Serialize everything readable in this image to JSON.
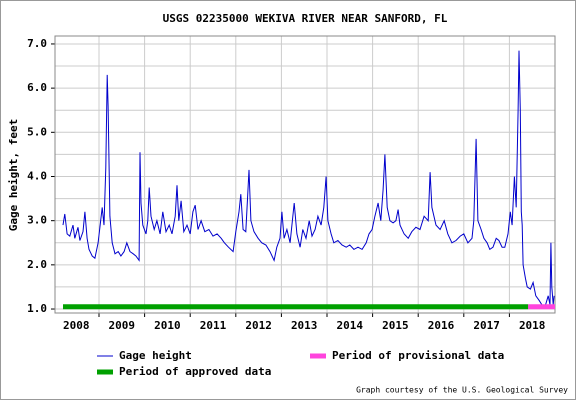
{
  "chart_data": {
    "type": "line",
    "title": "USGS 02235000 WEKIVA RIVER NEAR SANFORD, FL",
    "y_label": "Gage height, feet",
    "credit": "Graph courtesy of the U.S. Geological Survey",
    "xlim": [
      2008.035,
      2019.0
    ],
    "ylim": [
      0.91,
      7.18
    ],
    "xticks": [
      {
        "value": 2008.5,
        "label": "2008"
      },
      {
        "value": 2009.5,
        "label": "2009"
      },
      {
        "value": 2010.5,
        "label": "2010"
      },
      {
        "value": 2011.5,
        "label": "2011"
      },
      {
        "value": 2012.5,
        "label": "2012"
      },
      {
        "value": 2013.5,
        "label": "2013"
      },
      {
        "value": 2014.5,
        "label": "2014"
      },
      {
        "value": 2015.5,
        "label": "2015"
      },
      {
        "value": 2016.5,
        "label": "2016"
      },
      {
        "value": 2017.5,
        "label": "2017"
      },
      {
        "value": 2018.5,
        "label": "2018"
      }
    ],
    "xgrid": [
      2009,
      2010,
      2011,
      2012,
      2013,
      2014,
      2015,
      2016,
      2017,
      2018
    ],
    "yticks": [
      {
        "value": 1,
        "label": "1.0"
      },
      {
        "value": 2,
        "label": "2.0"
      },
      {
        "value": 3,
        "label": "3.0"
      },
      {
        "value": 4,
        "label": "4.0"
      },
      {
        "value": 5,
        "label": "5.0"
      },
      {
        "value": 6,
        "label": "6.0"
      },
      {
        "value": 7,
        "label": "7.0"
      }
    ],
    "yminor": [
      1.5,
      2.5,
      3.5,
      4.5,
      5.5,
      6.5
    ],
    "grid": true,
    "series": [
      {
        "name": "Gage height",
        "color": "#0000cc",
        "x": [
          2008.21,
          2008.25,
          2008.3,
          2008.36,
          2008.43,
          2008.47,
          2008.54,
          2008.58,
          2008.65,
          2008.69,
          2008.74,
          2008.78,
          2008.85,
          2008.91,
          2008.98,
          2009.02,
          2009.07,
          2009.11,
          2009.15,
          2009.18,
          2009.2,
          2009.24,
          2009.29,
          2009.35,
          2009.42,
          2009.48,
          2009.55,
          2009.61,
          2009.68,
          2009.75,
          2009.81,
          2009.88,
          2009.9,
          2009.92,
          2009.96,
          2010.03,
          2010.07,
          2010.1,
          2010.14,
          2010.21,
          2010.27,
          2010.34,
          2010.4,
          2010.47,
          2010.54,
          2010.6,
          2010.67,
          2010.71,
          2010.75,
          2010.8,
          2010.86,
          2010.93,
          2011.0,
          2011.06,
          2011.11,
          2011.17,
          2011.24,
          2011.32,
          2011.41,
          2011.5,
          2011.59,
          2011.68,
          2011.75,
          2011.84,
          2011.94,
          2012.0,
          2012.07,
          2012.11,
          2012.16,
          2012.22,
          2012.29,
          2012.33,
          2012.4,
          2012.49,
          2012.57,
          2012.66,
          2012.75,
          2012.84,
          2012.9,
          2012.97,
          2013.01,
          2013.06,
          2013.12,
          2013.19,
          2013.28,
          2013.34,
          2013.41,
          2013.47,
          2013.54,
          2013.61,
          2013.67,
          2013.74,
          2013.8,
          2013.87,
          2013.93,
          2013.98,
          2014.02,
          2014.09,
          2014.15,
          2014.24,
          2014.33,
          2014.42,
          2014.5,
          2014.59,
          2014.68,
          2014.77,
          2014.86,
          2014.92,
          2014.99,
          2015.05,
          2015.12,
          2015.18,
          2015.23,
          2015.27,
          2015.32,
          2015.38,
          2015.45,
          2015.51,
          2015.56,
          2015.6,
          2015.69,
          2015.78,
          2015.86,
          2015.95,
          2016.04,
          2016.13,
          2016.22,
          2016.26,
          2016.3,
          2016.39,
          2016.48,
          2016.57,
          2016.65,
          2016.74,
          2016.83,
          2016.92,
          2017.0,
          2017.09,
          2017.18,
          2017.22,
          2017.27,
          2017.31,
          2017.38,
          2017.44,
          2017.51,
          2017.57,
          2017.64,
          2017.71,
          2017.77,
          2017.84,
          2017.9,
          2017.97,
          2018.02,
          2018.06,
          2018.11,
          2018.15,
          2018.19,
          2018.21,
          2018.24,
          2018.26,
          2018.28,
          2018.3,
          2018.35,
          2018.39,
          2018.46,
          2018.52,
          2018.58,
          2018.65,
          2018.71,
          2018.78,
          2018.85,
          2018.89,
          2018.91,
          2018.93,
          2018.96,
          2018.98
        ],
        "values": [
          2.9,
          3.15,
          2.7,
          2.65,
          2.9,
          2.6,
          2.85,
          2.55,
          2.75,
          3.2,
          2.6,
          2.35,
          2.2,
          2.15,
          2.5,
          2.85,
          3.3,
          2.9,
          4.2,
          6.3,
          5.6,
          3.1,
          2.5,
          2.25,
          2.3,
          2.2,
          2.3,
          2.5,
          2.3,
          2.25,
          2.2,
          2.1,
          4.55,
          3.4,
          2.9,
          2.7,
          3.0,
          3.75,
          3.1,
          2.8,
          3.0,
          2.7,
          3.2,
          2.75,
          2.9,
          2.7,
          3.1,
          3.8,
          3.0,
          3.45,
          2.75,
          2.9,
          2.7,
          3.2,
          3.35,
          2.8,
          3.0,
          2.75,
          2.8,
          2.65,
          2.7,
          2.6,
          2.5,
          2.4,
          2.3,
          2.75,
          3.2,
          3.6,
          2.8,
          2.75,
          4.15,
          3.0,
          2.75,
          2.6,
          2.5,
          2.45,
          2.3,
          2.1,
          2.4,
          2.6,
          3.2,
          2.6,
          2.8,
          2.5,
          3.4,
          2.7,
          2.4,
          2.8,
          2.6,
          3.0,
          2.65,
          2.8,
          3.1,
          2.9,
          3.3,
          4.0,
          3.0,
          2.7,
          2.5,
          2.55,
          2.45,
          2.4,
          2.45,
          2.35,
          2.4,
          2.35,
          2.5,
          2.7,
          2.8,
          3.1,
          3.4,
          3.0,
          3.7,
          4.5,
          3.3,
          3.0,
          2.95,
          3.0,
          3.25,
          2.9,
          2.7,
          2.6,
          2.75,
          2.85,
          2.8,
          3.1,
          3.0,
          4.1,
          3.3,
          2.9,
          2.8,
          3.0,
          2.7,
          2.5,
          2.55,
          2.65,
          2.7,
          2.5,
          2.6,
          3.0,
          4.85,
          3.0,
          2.8,
          2.6,
          2.5,
          2.35,
          2.4,
          2.6,
          2.55,
          2.4,
          2.4,
          2.7,
          3.2,
          2.9,
          4.0,
          3.3,
          5.5,
          6.85,
          5.5,
          3.2,
          2.9,
          2.0,
          1.7,
          1.5,
          1.45,
          1.6,
          1.3,
          1.2,
          1.1,
          1.05,
          1.3,
          1.1,
          2.5,
          1.5,
          1.1,
          1.3
        ]
      },
      {
        "name": "Period of provisional data",
        "color": "#ff44dd",
        "x": [
          2018.41,
          2019.0
        ],
        "values": [
          1.05,
          1.05
        ]
      },
      {
        "name": "Period of approved data",
        "color": "#00a000",
        "x": [
          2008.21,
          2018.41
        ],
        "values": [
          1.05,
          1.05
        ]
      }
    ]
  }
}
